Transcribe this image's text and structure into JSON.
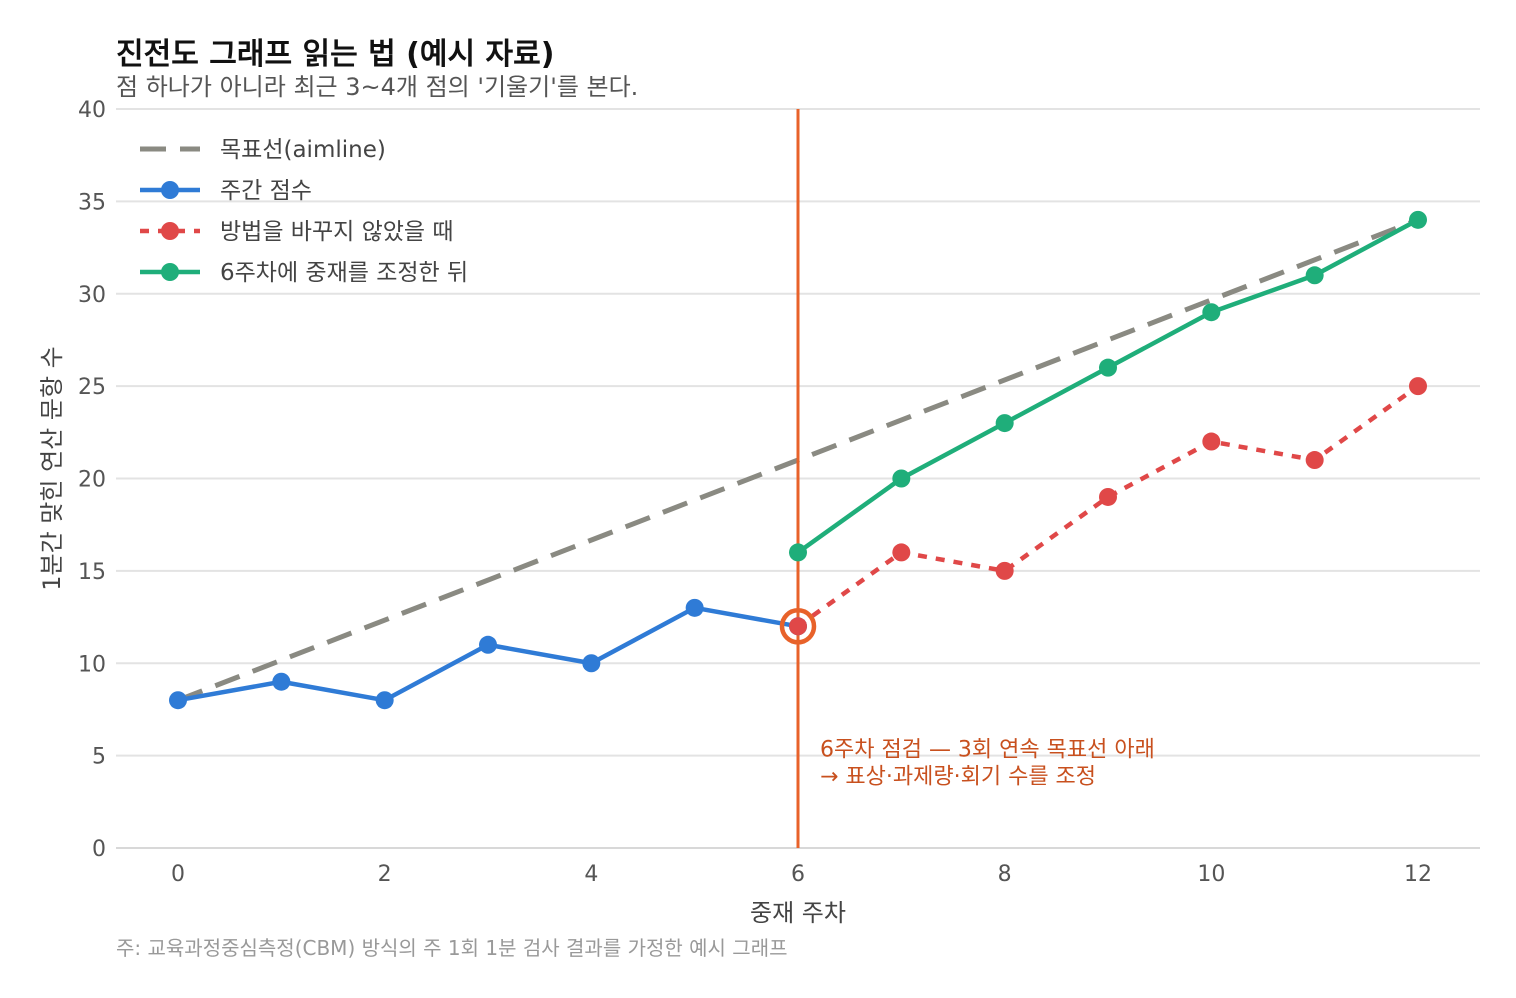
{
  "title": "진전도 그래프 읽는 법 (예시 자료)",
  "subtitle": "점 하나가 아니라 최근 3~4개 점의 '기울기'를 본다.",
  "caption": "주: 교육과정중심측정(CBM) 방식의 주 1회 1분 검사 결과를 가정한 예시 그래프",
  "annotation": {
    "line1": "6주차 점검 — 3회 연속 목표선 아래",
    "line2": "→ 표상·과제량·회기 수를 조정",
    "week": 6,
    "color": "#e8622a"
  },
  "chart_data": {
    "type": "line",
    "title": "진전도 그래프 읽는 법 (예시 자료)",
    "xlabel": "중재 주차",
    "ylabel": "1분간 맞힌 연산 문항 수",
    "xlim": [
      -0.6,
      12.6
    ],
    "ylim": [
      0,
      40
    ],
    "xticks": [
      0,
      2,
      4,
      6,
      8,
      10,
      12
    ],
    "yticks": [
      0,
      5,
      10,
      15,
      20,
      25,
      30,
      35,
      40
    ],
    "grid": "horizontal",
    "legend_position": "top-left",
    "series": [
      {
        "name": "목표선(aimline)",
        "style": "dashed",
        "color": "#8a8a82",
        "markers": false,
        "x": [
          0,
          12
        ],
        "y": [
          8,
          34
        ]
      },
      {
        "name": "주간 점수",
        "style": "solid",
        "color": "#2f7bd6",
        "markers": true,
        "x": [
          0,
          1,
          2,
          3,
          4,
          5,
          6
        ],
        "y": [
          8,
          9,
          8,
          11,
          10,
          13,
          12
        ]
      },
      {
        "name": "방법을 바꾸지 않았을 때",
        "style": "dotted",
        "color": "#e04848",
        "markers": true,
        "x": [
          6,
          7,
          8,
          9,
          10,
          11,
          12
        ],
        "y": [
          12,
          16,
          15,
          19,
          22,
          21,
          25
        ]
      },
      {
        "name": "6주차에 중재를 조정한 뒤",
        "style": "solid",
        "color": "#1fae7a",
        "markers": true,
        "x": [
          6,
          7,
          8,
          9,
          10,
          11,
          12
        ],
        "y": [
          16,
          20,
          23,
          26,
          29,
          31,
          34
        ]
      }
    ],
    "highlight_point": {
      "x": 6,
      "y": 12
    }
  }
}
